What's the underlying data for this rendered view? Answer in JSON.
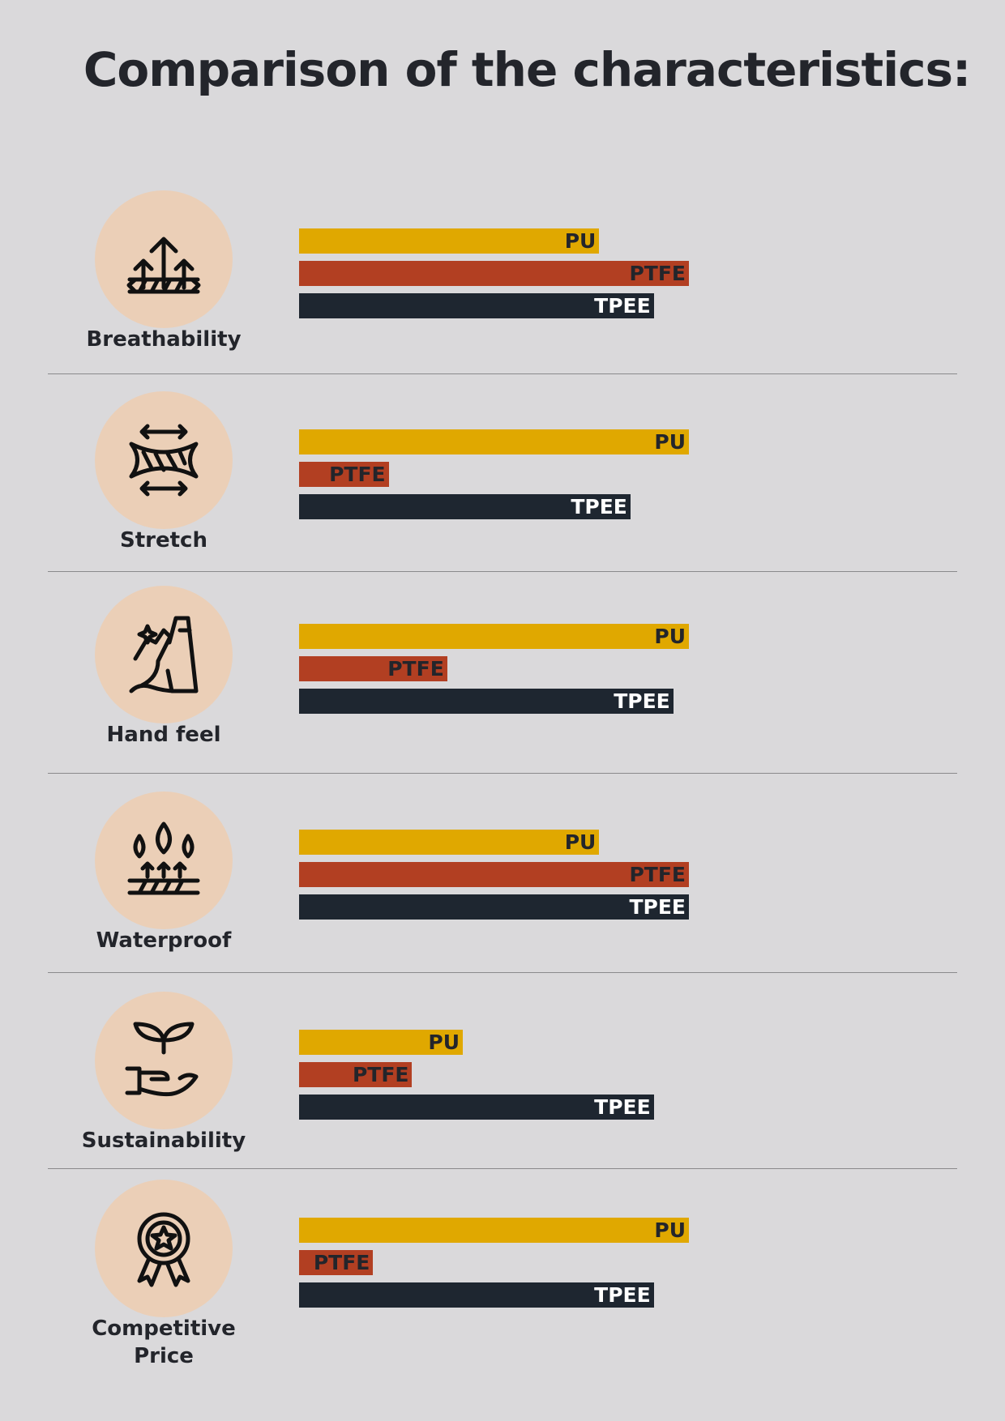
{
  "chart_data": {
    "type": "bar",
    "orientation": "horizontal",
    "title": "Comparison of the characteristics:",
    "categories": [
      "Breathability",
      "Stretch",
      "Hand feel",
      "Waterproof",
      "Sustainability",
      "Competitive Price"
    ],
    "series": [
      {
        "name": "PU",
        "color": "#e0a800",
        "label_color": "#23252b",
        "values": [
          77,
          100,
          100,
          77,
          42,
          100
        ]
      },
      {
        "name": "PTFE",
        "color": "#b23f22",
        "label_color": "#23252b",
        "values": [
          100,
          23,
          38,
          100,
          29,
          19
        ]
      },
      {
        "name": "TPEE",
        "color": "#1e2630",
        "label_color": "#ffffff",
        "values": [
          91,
          85,
          96,
          100,
          91,
          91
        ]
      }
    ]
  }
}
